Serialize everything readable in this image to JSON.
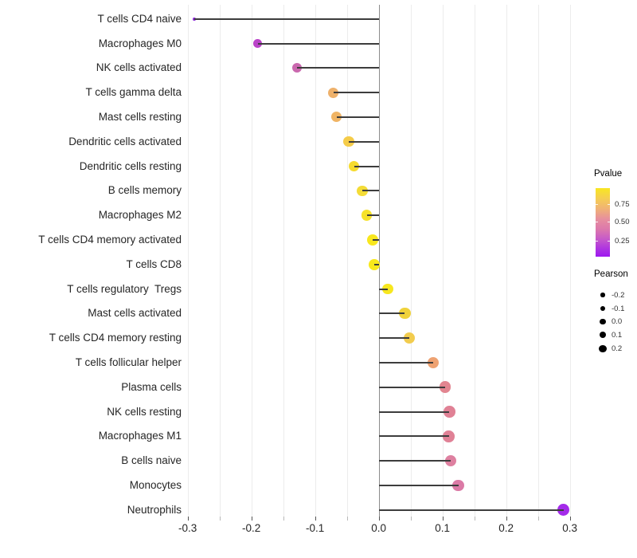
{
  "figure": {
    "background": "#ffffff"
  },
  "chart_data": {
    "type": "lollipop",
    "orientation": "horizontal",
    "title": "",
    "xlabel": "",
    "ylabel": "",
    "xlim": [
      -0.3,
      0.3
    ],
    "x_major_ticks": [
      -0.3,
      -0.2,
      -0.1,
      0.0,
      0.1,
      0.2,
      0.3
    ],
    "x_major_tick_labels": [
      "-0.3",
      "-0.2",
      "-0.1",
      "0.0",
      "0.1",
      "0.2",
      "0.3"
    ],
    "x_minor_tick_step": 0.05,
    "grid": "vertical light-gray lines every 0.05",
    "zero_line_at": 0.0,
    "points": [
      {
        "category": "T cells CD4 naive",
        "pearson": -0.29,
        "pvalue_approx": 0.07,
        "color": "#8E2BDA"
      },
      {
        "category": "Macrophages M0",
        "pearson": -0.19,
        "pvalue_approx": 0.18,
        "color": "#BA43C8"
      },
      {
        "category": "NK cells activated",
        "pearson": -0.128,
        "pvalue_approx": 0.3,
        "color": "#CA68AE"
      },
      {
        "category": "T cells gamma delta",
        "pearson": -0.071,
        "pvalue_approx": 0.63,
        "color": "#EEB16B"
      },
      {
        "category": "Mast cells resting",
        "pearson": -0.066,
        "pvalue_approx": 0.64,
        "color": "#F0B464"
      },
      {
        "category": "Dendritic cells activated",
        "pearson": -0.047,
        "pvalue_approx": 0.78,
        "color": "#F5CC49"
      },
      {
        "category": "Dendritic cells resting",
        "pearson": -0.039,
        "pvalue_approx": 0.86,
        "color": "#F6DB2D"
      },
      {
        "category": "B cells memory",
        "pearson": -0.026,
        "pvalue_approx": 0.86,
        "color": "#F4DC37"
      },
      {
        "category": "Macrophages M2",
        "pearson": -0.019,
        "pvalue_approx": 0.9,
        "color": "#F6E22A"
      },
      {
        "category": "T cells CD4 memory activated",
        "pearson": -0.01,
        "pvalue_approx": 0.94,
        "color": "#F8E71E"
      },
      {
        "category": "T cells CD8",
        "pearson": -0.007,
        "pvalue_approx": 0.95,
        "color": "#F8E91B"
      },
      {
        "category": "T cells regulatory  Tregs",
        "pearson": 0.014,
        "pvalue_approx": 0.94,
        "color": "#F7E71F"
      },
      {
        "category": "Mast cells activated",
        "pearson": 0.041,
        "pvalue_approx": 0.8,
        "color": "#F0D23A"
      },
      {
        "category": "T cells CD4 memory resting",
        "pearson": 0.048,
        "pvalue_approx": 0.77,
        "color": "#F2CC4E"
      },
      {
        "category": "T cells follicular helper",
        "pearson": 0.085,
        "pvalue_approx": 0.58,
        "color": "#EEA272"
      },
      {
        "category": "Plasma cells",
        "pearson": 0.104,
        "pvalue_approx": 0.47,
        "color": "#E28590"
      },
      {
        "category": "NK cells resting",
        "pearson": 0.111,
        "pvalue_approx": 0.46,
        "color": "#E08195"
      },
      {
        "category": "Macrophages M1",
        "pearson": 0.11,
        "pvalue_approx": 0.46,
        "color": "#E08196"
      },
      {
        "category": "B cells naive",
        "pearson": 0.113,
        "pvalue_approx": 0.44,
        "color": "#DE80A0"
      },
      {
        "category": "Monocytes",
        "pearson": 0.125,
        "pvalue_approx": 0.41,
        "color": "#DB7AA6"
      },
      {
        "category": "Neutrophils",
        "pearson": 0.29,
        "pvalue_approx": 0.06,
        "color": "#A42BEA"
      }
    ],
    "legends": {
      "pvalue": {
        "title": "Pvalue",
        "tick_labels": [
          "0.75",
          "0.50",
          "0.25"
        ],
        "gradient_top_to_bottom": [
          {
            "color": "#F8E621",
            "pos": 0
          },
          {
            "color": "#F5CE52",
            "pos": 15
          },
          {
            "color": "#F0B275",
            "pos": 30
          },
          {
            "color": "#E78F9E",
            "pos": 45
          },
          {
            "color": "#DC78AC",
            "pos": 60
          },
          {
            "color": "#C558CB",
            "pos": 75
          },
          {
            "color": "#AB30E3",
            "pos": 90
          },
          {
            "color": "#9E18F0",
            "pos": 100
          }
        ]
      },
      "pearson": {
        "title": "Pearson",
        "labels": [
          "-0.2",
          "-0.1",
          "0.0",
          "0.1",
          "0.2"
        ]
      }
    },
    "style_colors": {
      "stem": "#3d3d3d",
      "grid": "#ececec",
      "zero_line": "#8c8c8c",
      "axis_text": "#262626",
      "legend_dot": "#000000"
    }
  }
}
